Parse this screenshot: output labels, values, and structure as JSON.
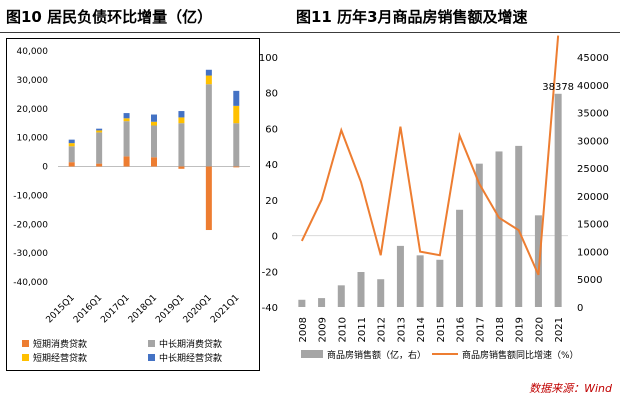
{
  "figure_titles": {
    "left": "图10 居民负债环比增量（亿）",
    "right": "图11 历年3月商品房销售额及增速"
  },
  "source": "数据来源：Wind",
  "chart_data": [
    {
      "type": "bar",
      "stacked": true,
      "categories": [
        "2015Q1",
        "2016Q1",
        "2017Q1",
        "2018Q1",
        "2019Q1",
        "2020Q1",
        "2021Q1"
      ],
      "series": [
        {
          "name": "短期消费贷款",
          "color": "#ed7d31",
          "values": [
            1500,
            1000,
            3500,
            3200,
            -800,
            -22000,
            -300
          ]
        },
        {
          "name": "中长期消费贷款",
          "color": "#a5a5a5",
          "values": [
            5500,
            10800,
            12200,
            11000,
            15000,
            28500,
            15000
          ]
        },
        {
          "name": "短期经营贷款",
          "color": "#ffc000",
          "values": [
            1100,
            700,
            1000,
            1300,
            2000,
            3000,
            6000
          ]
        },
        {
          "name": "中长期经营贷款",
          "color": "#4472c4",
          "values": [
            1200,
            600,
            1800,
            2500,
            2200,
            2000,
            5200
          ]
        }
      ],
      "ylim": [
        -40000,
        40000
      ],
      "yticks": [
        "-40,000",
        "-30,000",
        "-20,000",
        "-10,000",
        "0",
        "10,000",
        "20,000",
        "30,000",
        "40,000"
      ],
      "legend_position": "bottom"
    },
    {
      "type": "bar+line",
      "categories": [
        "2008",
        "2009",
        "2010",
        "2011",
        "2012",
        "2013",
        "2014",
        "2015",
        "2016",
        "2017",
        "2018",
        "2019",
        "2020",
        "2021"
      ],
      "bar_series": {
        "name": "商品房销售额（亿，右）",
        "color": "#a5a5a5",
        "values": [
          1300,
          1600,
          3900,
          6300,
          5000,
          11000,
          9300,
          8500,
          17500,
          25800,
          28000,
          29000,
          16500,
          38378
        ]
      },
      "line_series": {
        "name": "商品房销售额同比增速（%）",
        "color": "#ed7d31",
        "values": [
          -3,
          20,
          59,
          30,
          -11,
          61,
          -9,
          -11,
          56,
          29,
          10,
          3,
          -22,
          112
        ]
      },
      "annotation": "38378",
      "ylim_left": [
        -40,
        100
      ],
      "ylim_right": [
        0,
        45000
      ],
      "yticks_left": [
        "-40",
        "-20",
        "0",
        "20",
        "40",
        "60",
        "80",
        "100"
      ],
      "yticks_right": [
        "0",
        "5000",
        "10000",
        "15000",
        "20000",
        "25000",
        "30000",
        "35000",
        "40000",
        "45000"
      ],
      "legend_position": "bottom"
    }
  ]
}
